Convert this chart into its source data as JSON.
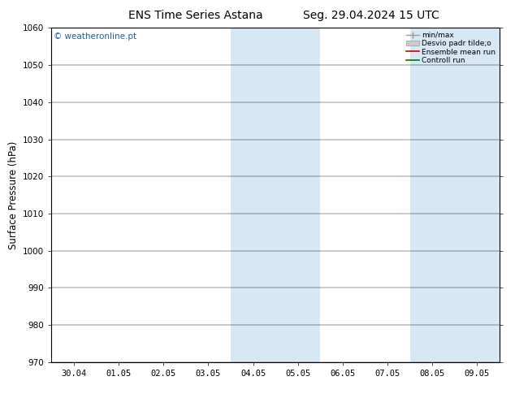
{
  "title_left": "ENS Time Series Astana",
  "title_right": "Seg. 29.04.2024 15 UTC",
  "ylabel": "Surface Pressure (hPa)",
  "ylim": [
    970,
    1060
  ],
  "yticks": [
    970,
    980,
    990,
    1000,
    1010,
    1020,
    1030,
    1040,
    1050,
    1060
  ],
  "x_labels": [
    "30.04",
    "01.05",
    "02.05",
    "03.05",
    "04.05",
    "05.05",
    "06.05",
    "07.05",
    "08.05",
    "09.05"
  ],
  "x_positions": [
    0,
    1,
    2,
    3,
    4,
    5,
    6,
    7,
    8,
    9
  ],
  "xlim": [
    -0.5,
    9.5
  ],
  "shaded_regions": [
    {
      "x_start": 3.5,
      "x_end": 5.5
    },
    {
      "x_start": 7.5,
      "x_end": 9.5
    }
  ],
  "shaded_color": "#d6e8f5",
  "watermark_text": "© weatheronline.pt",
  "watermark_color": "#1a5fb0",
  "legend_labels": [
    "min/max",
    "Desvio padr tilde;o",
    "Ensemble mean run",
    "Controll run"
  ],
  "background_color": "#ffffff",
  "plot_bg_color": "#ffffff",
  "border_color": "#000000",
  "tick_fontsize": 7.5,
  "title_fontsize": 10,
  "label_fontsize": 8.5,
  "watermark_fontsize": 7.5
}
